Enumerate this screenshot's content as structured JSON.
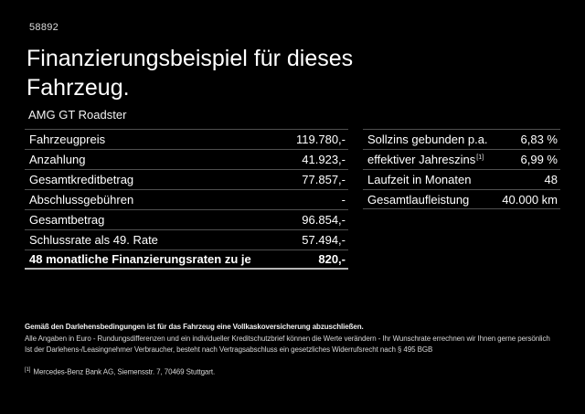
{
  "page": {
    "ref_number": "58892",
    "title_line1": "Finanzierungsbeispiel für dieses",
    "title_line2": "Fahrzeug.",
    "vehicle_model": "AMG GT Roadster"
  },
  "left_table": {
    "rows": [
      {
        "label": "Fahrzeugpreis",
        "value": "119.780,-"
      },
      {
        "label": "Anzahlung",
        "value": "41.923,-"
      },
      {
        "label": "Gesamtkreditbetrag",
        "value": "77.857,-"
      },
      {
        "label": "Abschlussgebühren",
        "value": "-"
      },
      {
        "label": "Gesamtbetrag",
        "value": "96.854,-"
      },
      {
        "label": "Schlussrate als 49. Rate",
        "value": "57.494,-"
      },
      {
        "label": "48 monatliche Finanzierungsraten zu je",
        "value": "820,-"
      }
    ]
  },
  "right_table": {
    "rows": [
      {
        "label": "Sollzins gebunden p.a.",
        "value": "6,83 %"
      },
      {
        "label": "effektiver Jahreszins",
        "marker": "[1]",
        "value": "6,99 %"
      },
      {
        "label": "Laufzeit in Monaten",
        "value": "48"
      },
      {
        "label": "Gesamtlaufleistung",
        "value": "40.000 km"
      }
    ]
  },
  "fine_print": {
    "line1": "Gemäß den Darlehensbedingungen ist für das Fahrzeug eine Vollkaskoversicherung abzuschließen.",
    "line2": "Alle Angaben in Euro - Rundungsdifferenzen und ein individueller Kreditschutzbrief können die Werte verändern - Ihr Wunschrate errechnen wir Ihnen gerne persönlich",
    "line3": "Ist der Darlehens-/Leasingnehmer Verbraucher, besteht nach Vertragsabschluss ein gesetzliches Widerrufsrecht nach § 495 BGB",
    "footnote_marker": "[1]",
    "footnote_text": "Mercedes-Benz Bank AG, Siemensstr. 7, 70469 Stuttgart."
  },
  "colors": {
    "background": "#000000",
    "text": "#ffffff",
    "divider": "#4f4f4f",
    "divider_strong": "#b5b5b5",
    "fine_print_text": "#d6d6d6"
  }
}
